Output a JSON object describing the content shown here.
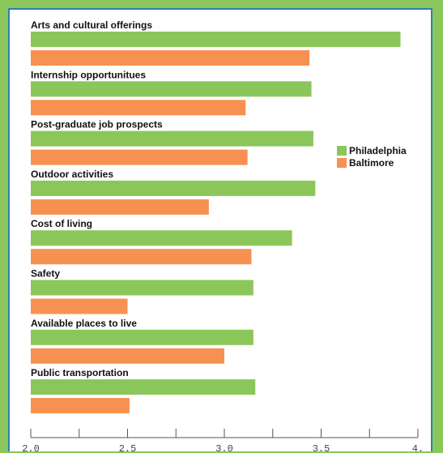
{
  "chart_data": {
    "type": "bar",
    "orientation": "horizontal",
    "categories": [
      "Arts and cultural offerings",
      "Internship opportunitues",
      "Post-graduate job prospects",
      "Outdoor activities",
      "Cost of living",
      "Safety",
      "Available places to live",
      "Public transportation"
    ],
    "series": [
      {
        "name": "Philadelphia",
        "color": "#8bc65a",
        "values": [
          3.91,
          3.45,
          3.46,
          3.47,
          3.35,
          3.15,
          3.15,
          3.16
        ]
      },
      {
        "name": "Baltimore",
        "color": "#f79151",
        "values": [
          3.44,
          3.11,
          3.12,
          2.92,
          3.14,
          2.5,
          3.0,
          2.51
        ]
      }
    ],
    "xlim": [
      2.0,
      4.0
    ],
    "xticks": [
      2.0,
      2.5,
      3.0,
      3.5,
      4.0
    ],
    "xtick_labels": [
      "2.0",
      "2.5",
      "3.0",
      "3.5",
      "4."
    ],
    "legend_position": "right",
    "grid": false
  }
}
